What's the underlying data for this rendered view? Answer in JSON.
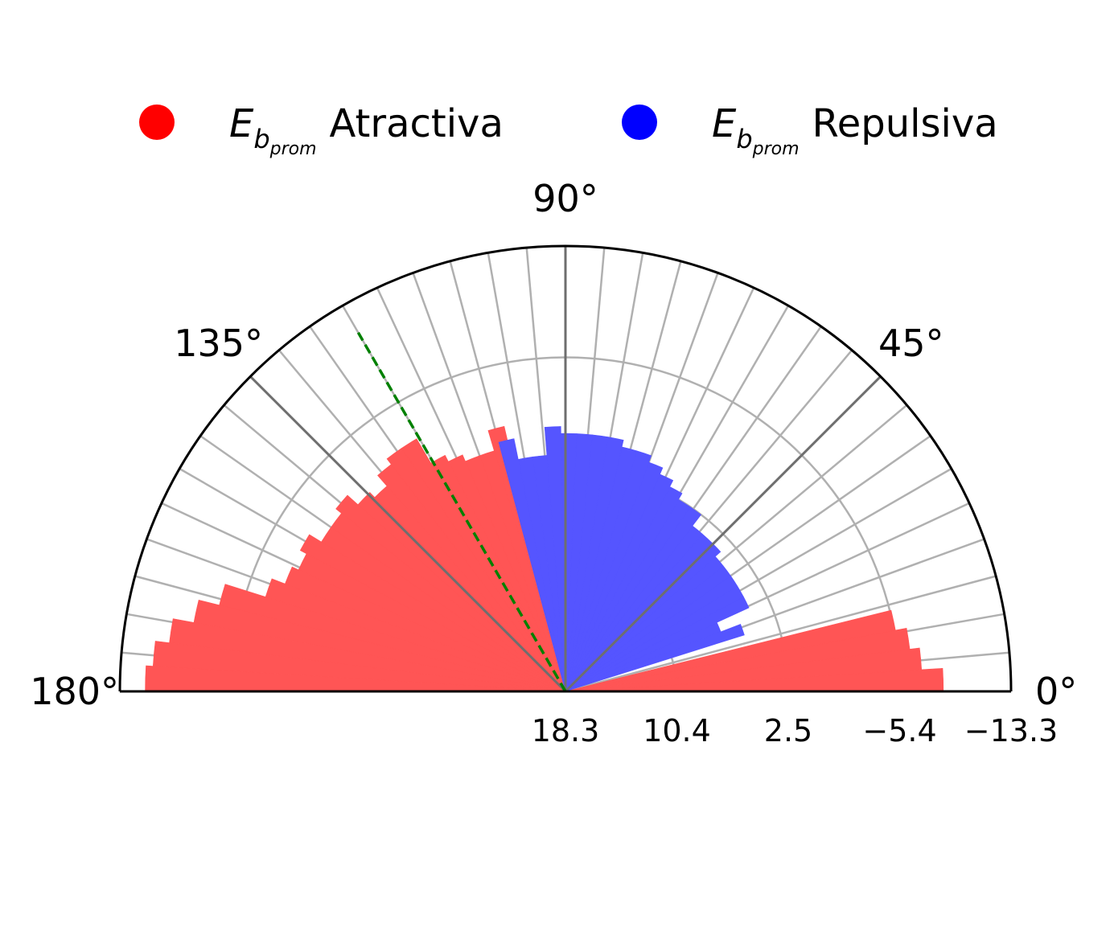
{
  "chart_data": {
    "type": "bar",
    "subtype": "polar-half",
    "title": "",
    "angle_range_deg": [
      0,
      180
    ],
    "angle_tick_labels": [
      "0°",
      "45°",
      "90°",
      "135°",
      "180°"
    ],
    "radial_tick_labels": [
      "18.3",
      "10.4",
      "2.5",
      "−5.4",
      "−13.3"
    ],
    "radial_axis": {
      "inner_value": 18.3,
      "outer_value": -13.3,
      "note_inverted": true
    },
    "grid": true,
    "legend": {
      "placement": "top",
      "entries": [
        {
          "symbol_main": "E",
          "symbol_sub": "b",
          "symbol_subsub": "prom",
          "label": "Atractiva",
          "color": "#ff0000"
        },
        {
          "symbol_main": "E",
          "symbol_sub": "b",
          "symbol_subsub": "prom",
          "label": "Repulsiva",
          "color": "#0000ff"
        }
      ]
    },
    "reference_line": {
      "angle_deg": 120,
      "style": "dashed",
      "color": "#008000"
    },
    "bin_width_deg": 3.5,
    "series": [
      {
        "name": "Atractiva",
        "color": "#ff5555",
        "bars": [
          {
            "angle": 1.75,
            "value": -8.5
          },
          {
            "angle": 5.25,
            "value": -7.0
          },
          {
            "angle": 8.75,
            "value": -6.3
          },
          {
            "angle": 12.25,
            "value": -5.5
          },
          {
            "angle": 104.75,
            "value": -1.0
          },
          {
            "angle": 108.25,
            "value": 0.5
          },
          {
            "angle": 111.75,
            "value": 0.5
          },
          {
            "angle": 115.25,
            "value": 0.0
          },
          {
            "angle": 118.75,
            "value": -0.5
          },
          {
            "angle": 122.25,
            "value": -2.5
          },
          {
            "angle": 125.75,
            "value": -2.5
          },
          {
            "angle": 129.25,
            "value": -2.0
          },
          {
            "angle": 132.75,
            "value": -1.0
          },
          {
            "angle": 136.25,
            "value": -1.5
          },
          {
            "angle": 139.75,
            "value": -2.5
          },
          {
            "angle": 143.25,
            "value": -2.0
          },
          {
            "angle": 146.75,
            "value": -2.0
          },
          {
            "angle": 150.25,
            "value": -3.0
          },
          {
            "angle": 153.75,
            "value": -2.5
          },
          {
            "angle": 157.25,
            "value": -3.0
          },
          {
            "angle": 160.75,
            "value": -4.0
          },
          {
            "angle": 164.25,
            "value": -7.0
          },
          {
            "angle": 167.75,
            "value": -8.5
          },
          {
            "angle": 171.25,
            "value": -10.0
          },
          {
            "angle": 174.75,
            "value": -11.0
          },
          {
            "angle": 178.25,
            "value": -11.5
          }
        ]
      },
      {
        "name": "Repulsiva",
        "color": "#5555ff",
        "bars": [
          {
            "angle": 19.25,
            "value": 5.0
          },
          {
            "angle": 22.75,
            "value": 6.5
          },
          {
            "angle": 26.25,
            "value": 4.0
          },
          {
            "angle": 29.75,
            "value": 4.0
          },
          {
            "angle": 33.25,
            "value": 4.0
          },
          {
            "angle": 36.75,
            "value": 4.0
          },
          {
            "angle": 40.25,
            "value": 4.0
          },
          {
            "angle": 43.75,
            "value": 3.5
          },
          {
            "angle": 47.25,
            "value": 3.5
          },
          {
            "angle": 50.75,
            "value": 3.5
          },
          {
            "angle": 54.25,
            "value": 2.5
          },
          {
            "angle": 57.75,
            "value": 2.5
          },
          {
            "angle": 61.25,
            "value": 2.0
          },
          {
            "angle": 64.75,
            "value": 1.5
          },
          {
            "angle": 68.25,
            "value": 1.0
          },
          {
            "angle": 71.75,
            "value": 0.5
          },
          {
            "angle": 75.25,
            "value": 0.5
          },
          {
            "angle": 78.75,
            "value": 0.0
          },
          {
            "angle": 82.25,
            "value": 0.0
          },
          {
            "angle": 85.75,
            "value": 0.0
          },
          {
            "angle": 89.25,
            "value": 0.0
          },
          {
            "angle": 92.75,
            "value": -0.5
          },
          {
            "angle": 96.25,
            "value": 1.5
          },
          {
            "angle": 99.75,
            "value": 1.5
          },
          {
            "angle": 103.25,
            "value": 0.0
          }
        ]
      }
    ]
  }
}
